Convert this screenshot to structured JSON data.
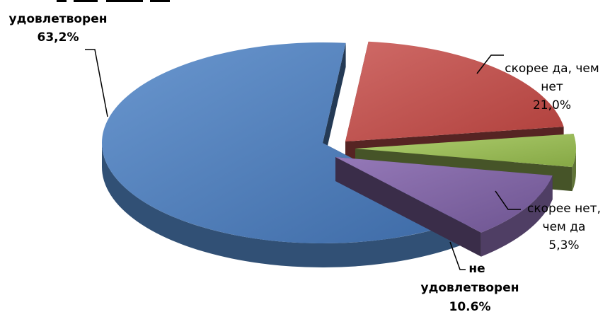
{
  "chart_data": {
    "type": "pie",
    "variant": "3d-exploded",
    "slices": [
      {
        "label_lines": [
          "удовлетворен",
          "63,2%"
        ],
        "value": 63.2,
        "color": "#4f81bd",
        "bold": true
      },
      {
        "label_lines": [
          "скорее да, чем",
          "нет",
          "21,0%"
        ],
        "value": 21.0,
        "color": "#c0504d",
        "bold": false
      },
      {
        "label_lines": [
          "скорее нет,",
          "чем да",
          "5,3%"
        ],
        "value": 5.3,
        "color": "#9bbb59",
        "bold": false
      },
      {
        "label_lines": [
          "не",
          "удовлетворен",
          "10.6%"
        ],
        "value": 10.6,
        "color": "#8064a2",
        "bold": true
      }
    ],
    "legend": "none",
    "grid": false
  }
}
